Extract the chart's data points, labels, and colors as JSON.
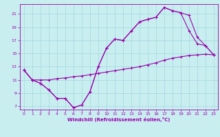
{
  "xlabel": "Windchill (Refroidissement éolien,°C)",
  "xlim": [
    -0.5,
    23.5
  ],
  "ylim": [
    6.5,
    22.5
  ],
  "xticks": [
    0,
    1,
    2,
    3,
    4,
    5,
    6,
    7,
    8,
    9,
    10,
    11,
    12,
    13,
    14,
    15,
    16,
    17,
    18,
    19,
    20,
    21,
    22,
    23
  ],
  "yticks": [
    7,
    9,
    11,
    13,
    15,
    17,
    19,
    21
  ],
  "background_color": "#c9eef0",
  "line_color": "#9900aa",
  "grid_color": "#a0d8dc",
  "line1_x": [
    0,
    1,
    2,
    3,
    4,
    5,
    6,
    7,
    8,
    9,
    10,
    11,
    12,
    13,
    14,
    15,
    16,
    17,
    18,
    19,
    20,
    21,
    22,
    23
  ],
  "line1_y": [
    12.5,
    11.0,
    10.5,
    9.5,
    8.2,
    8.2,
    6.8,
    7.2,
    9.2,
    13.0,
    15.8,
    17.2,
    17.0,
    18.4,
    19.8,
    20.2,
    20.5,
    22.0,
    21.5,
    21.2,
    20.8,
    17.5,
    16.2,
    14.8
  ],
  "line2_x": [
    0,
    1,
    2,
    3,
    4,
    5,
    6,
    7,
    8,
    9,
    10,
    11,
    12,
    13,
    14,
    15,
    16,
    17,
    18,
    19,
    20,
    21,
    22,
    23
  ],
  "line2_y": [
    12.5,
    11.0,
    10.5,
    9.5,
    8.2,
    8.2,
    6.8,
    7.2,
    9.2,
    13.0,
    15.8,
    17.2,
    17.0,
    18.4,
    19.8,
    20.2,
    20.5,
    22.0,
    21.5,
    21.2,
    18.5,
    16.5,
    16.2,
    14.8
  ],
  "line3_x": [
    0,
    1,
    2,
    3,
    4,
    5,
    6,
    7,
    8,
    9,
    10,
    11,
    12,
    13,
    14,
    15,
    16,
    17,
    18,
    19,
    20,
    21,
    22,
    23
  ],
  "line3_y": [
    12.5,
    11.0,
    11.0,
    11.0,
    11.2,
    11.3,
    11.5,
    11.6,
    11.8,
    12.0,
    12.2,
    12.4,
    12.6,
    12.8,
    13.0,
    13.3,
    13.6,
    14.0,
    14.3,
    14.5,
    14.7,
    14.8,
    14.9,
    14.8
  ]
}
